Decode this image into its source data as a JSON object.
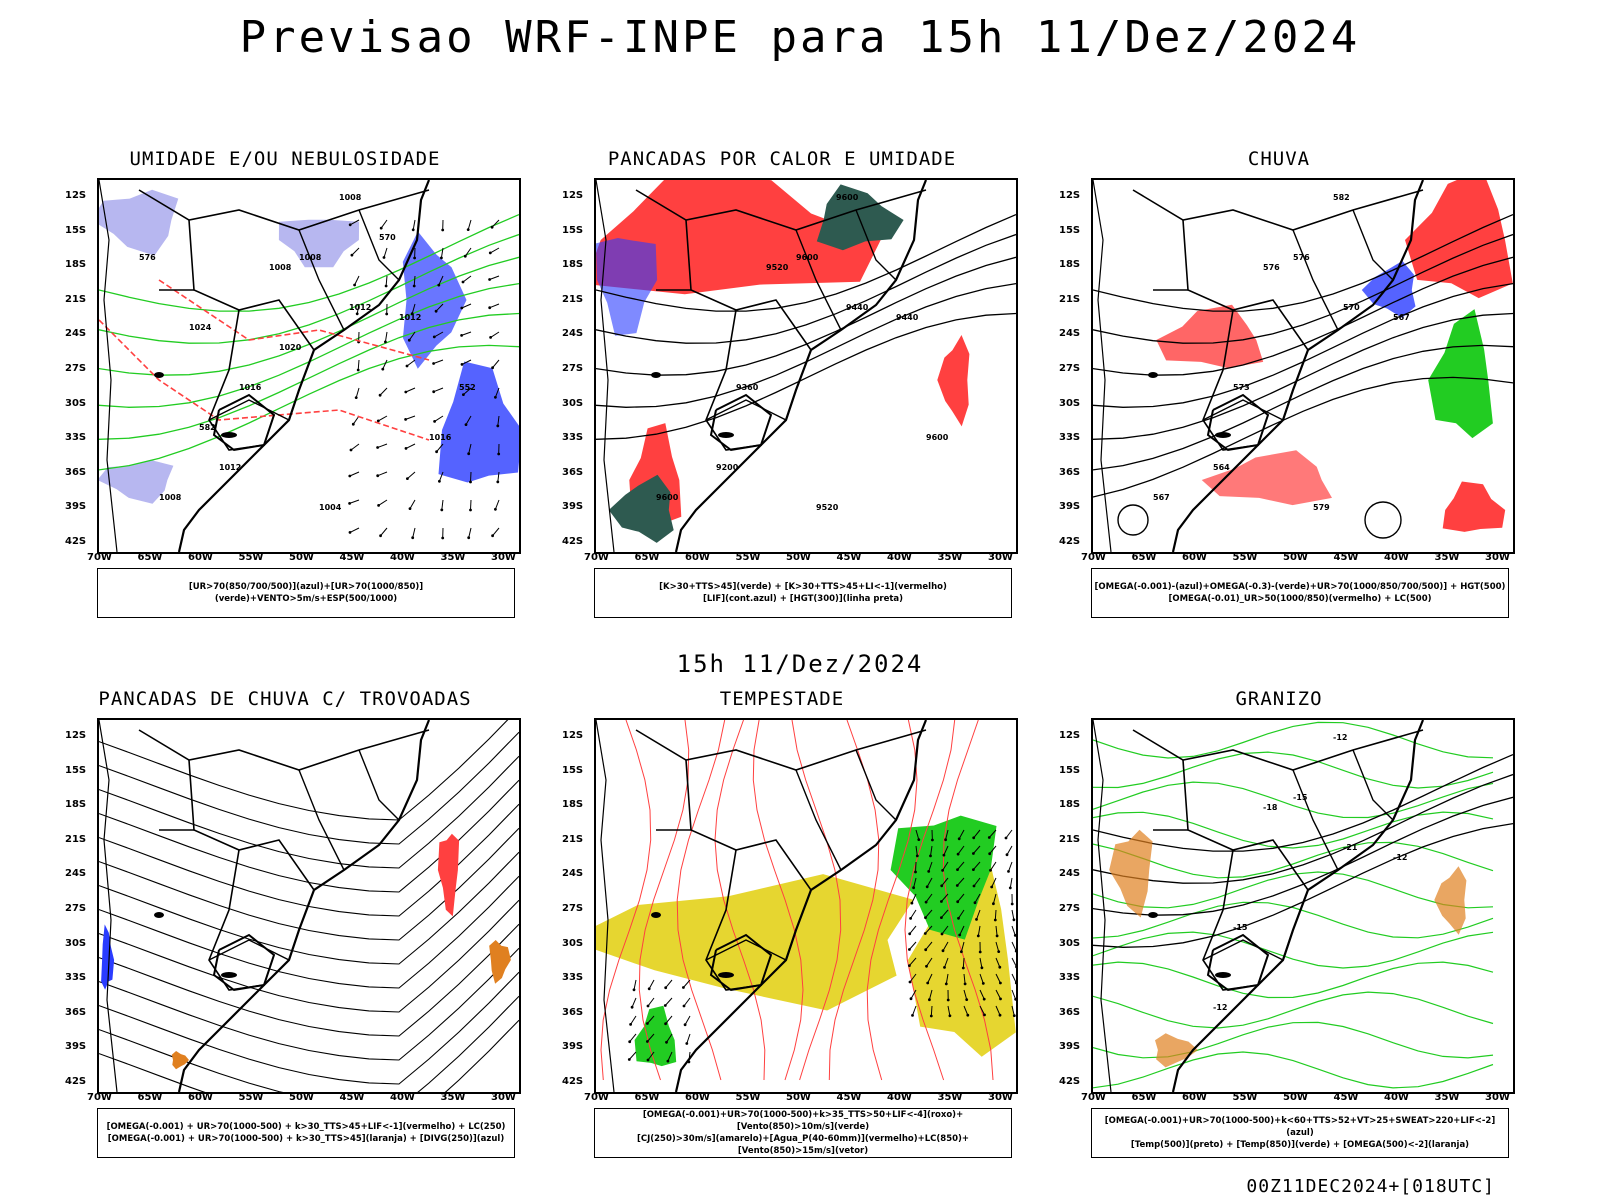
{
  "header": {
    "title": "Previsao WRF-INPE  para 15h 11/Dez/2024",
    "mid_label": "15h 11/Dez/2024",
    "footer": "00Z11DEC2024+[018UTC]"
  },
  "axes": {
    "lat_labels": [
      "12S",
      "15S",
      "18S",
      "21S",
      "24S",
      "27S",
      "30S",
      "33S",
      "36S",
      "39S",
      "42S"
    ],
    "lon_labels": [
      "70W",
      "65W",
      "60W",
      "55W",
      "50W",
      "45W",
      "40W",
      "35W",
      "30W"
    ]
  },
  "panels": [
    {
      "id": "umidade",
      "title": "UMIDADE E/OU NEBULOSIDADE",
      "legend": [
        "[UR>70(850/700/500)](azul)+[UR>70(1000/850)](verde)+VENTO>5m/s+ESP(500/1000)"
      ],
      "contour_labels": [
        "1008",
        "1008",
        "1008",
        "1012",
        "1012",
        "1016",
        "1012",
        "1004",
        "1008",
        "1016",
        "1020",
        "1024",
        "570",
        "576",
        "552",
        "582"
      ]
    },
    {
      "id": "pancadas_calor",
      "title": "PANCADAS POR CALOR E UMIDADE",
      "legend": [
        "[K>30+TTS>45](verde) + [K>30+TTS>45+LI<-1](vermelho)",
        "[LIF](cont.azul) + [HGT(300)](linha preta)"
      ],
      "contour_labels": [
        "9600",
        "9600",
        "9520",
        "9440",
        "9440",
        "9360",
        "9200",
        "9520",
        "9600",
        "9600"
      ]
    },
    {
      "id": "chuva",
      "title": "CHUVA",
      "legend": [
        "[OMEGA(-0.001)-(azul)+OMEGA(-0.3)-(verde)+UR>70(1000/850/700/500)] + HGT(500)",
        "[OMEGA(-0.01)_UR>50(1000/850)(vermelho) + LC(500)"
      ],
      "contour_labels": [
        "582",
        "576",
        "576",
        "570",
        "567",
        "573",
        "564",
        "579",
        "567"
      ]
    },
    {
      "id": "pancadas_trovoadas",
      "title": "PANCADAS DE CHUVA C/ TROVOADAS",
      "legend": [
        "[OMEGA(-0.001) + UR>70(1000-500) + k>30_TTS>45+LIF<-1](vermelho) + LC(250)",
        "[OMEGA(-0.001) + UR>70(1000-500) + k>30_TTS>45](laranja) + [DIVG(250)](azul)"
      ],
      "contour_labels": []
    },
    {
      "id": "tempestade",
      "title": "TEMPESTADE",
      "legend": [
        "[OMEGA(-0.001)+UR>70(1000-500)+k>35_TTS>50+LIF<-4](roxo)+[Vento(850)>10m/s](verde)",
        "[CJ(250)>30m/s](amarelo)+[Agua_P(40-60mm)](vermelho)+LC(850)+[Vento(850)>15m/s](vetor)"
      ],
      "contour_labels": []
    },
    {
      "id": "granizo",
      "title": "GRANIZO",
      "legend": [
        "[OMEGA(-0.001)+UR>70(1000-500)+k<60+TTS>52+VT>25+SWEAT>220+LIF<-2](azul)",
        "[Temp(500)](preto) + [Temp(850)](verde) + [OMEGA(500)<-2](laranja)"
      ],
      "contour_labels": [
        "-12",
        "-15",
        "-18",
        "-21",
        "-12",
        "-15",
        "-12"
      ]
    }
  ],
  "colors": {
    "red": "#ff4040",
    "green": "#22cc22",
    "blue": "#2a3cff",
    "lavender": "#b7b7f0",
    "dark_teal": "#2e5a50",
    "yellow": "#e6d630",
    "orange": "#e08020"
  }
}
